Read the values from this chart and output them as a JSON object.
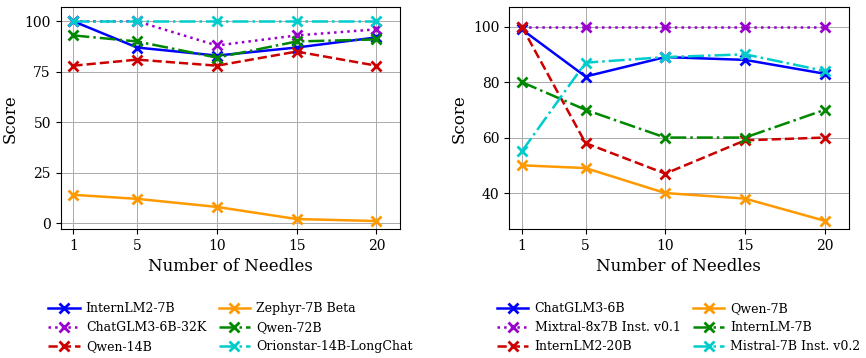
{
  "x": [
    1,
    5,
    10,
    15,
    20
  ],
  "left_chart": {
    "xlabel": "Number of Needles",
    "ylabel": "Score",
    "ylim": [
      -3,
      107
    ],
    "yticks": [
      0,
      25,
      50,
      75,
      100
    ],
    "xlim": [
      0.2,
      21.5
    ],
    "series": [
      {
        "label": "InternLM2-7B",
        "values": [
          100,
          87,
          83,
          87,
          92
        ],
        "color": "#0000ff",
        "linestyle": "-",
        "marker": "x",
        "linewidth": 1.8,
        "markersize": 7
      },
      {
        "label": "ChatGLM3-6B-32K",
        "values": [
          100,
          100,
          88,
          93,
          96
        ],
        "color": "#9900cc",
        "linestyle": ":",
        "marker": "x",
        "linewidth": 1.8,
        "markersize": 7
      },
      {
        "label": "Qwen-14B",
        "values": [
          78,
          81,
          78,
          85,
          78
        ],
        "color": "#cc0000",
        "linestyle": "--",
        "marker": "x",
        "linewidth": 1.8,
        "markersize": 7
      },
      {
        "label": "Zephyr-7B Beta",
        "values": [
          14,
          12,
          8,
          2,
          1
        ],
        "color": "#ff9900",
        "linestyle": "-",
        "marker": "x",
        "linewidth": 1.8,
        "markersize": 7
      },
      {
        "label": "Qwen-72B",
        "values": [
          93,
          90,
          82,
          90,
          91
        ],
        "color": "#008800",
        "linestyle": "-.",
        "marker": "x",
        "linewidth": 1.8,
        "markersize": 7
      },
      {
        "label": "Orionstar-14B-LongChat",
        "values": [
          100,
          100,
          100,
          100,
          100
        ],
        "color": "#00cccc",
        "linestyle": "-.",
        "marker": "x",
        "linewidth": 1.8,
        "markersize": 7
      }
    ]
  },
  "right_chart": {
    "xlabel": "Number of Needles",
    "ylabel": "Score",
    "ylim": [
      27,
      107
    ],
    "yticks": [
      40,
      60,
      80,
      100
    ],
    "xlim": [
      0.2,
      21.5
    ],
    "series": [
      {
        "label": "ChatGLM3-6B",
        "values": [
          99,
          82,
          89,
          88,
          83
        ],
        "color": "#0000ff",
        "linestyle": "-",
        "marker": "x",
        "linewidth": 1.8,
        "markersize": 7
      },
      {
        "label": "Mixtral-8x7B Inst. v0.1",
        "values": [
          100,
          100,
          100,
          100,
          100
        ],
        "color": "#9900cc",
        "linestyle": ":",
        "marker": "x",
        "linewidth": 1.8,
        "markersize": 7
      },
      {
        "label": "InternLM2-20B",
        "values": [
          100,
          58,
          47,
          59,
          60
        ],
        "color": "#cc0000",
        "linestyle": "--",
        "marker": "x",
        "linewidth": 1.8,
        "markersize": 7
      },
      {
        "label": "Qwen-7B",
        "values": [
          50,
          49,
          40,
          38,
          30
        ],
        "color": "#ff9900",
        "linestyle": "-",
        "marker": "x",
        "linewidth": 1.8,
        "markersize": 7
      },
      {
        "label": "InternLM-7B",
        "values": [
          80,
          70,
          60,
          60,
          70
        ],
        "color": "#008800",
        "linestyle": "-.",
        "marker": "x",
        "linewidth": 1.8,
        "markersize": 7
      },
      {
        "label": "Mistral-7B Inst. v0.2",
        "values": [
          55,
          87,
          89,
          90,
          84
        ],
        "color": "#00cccc",
        "linestyle": "-.",
        "marker": "x",
        "linewidth": 1.8,
        "markersize": 7
      }
    ]
  }
}
